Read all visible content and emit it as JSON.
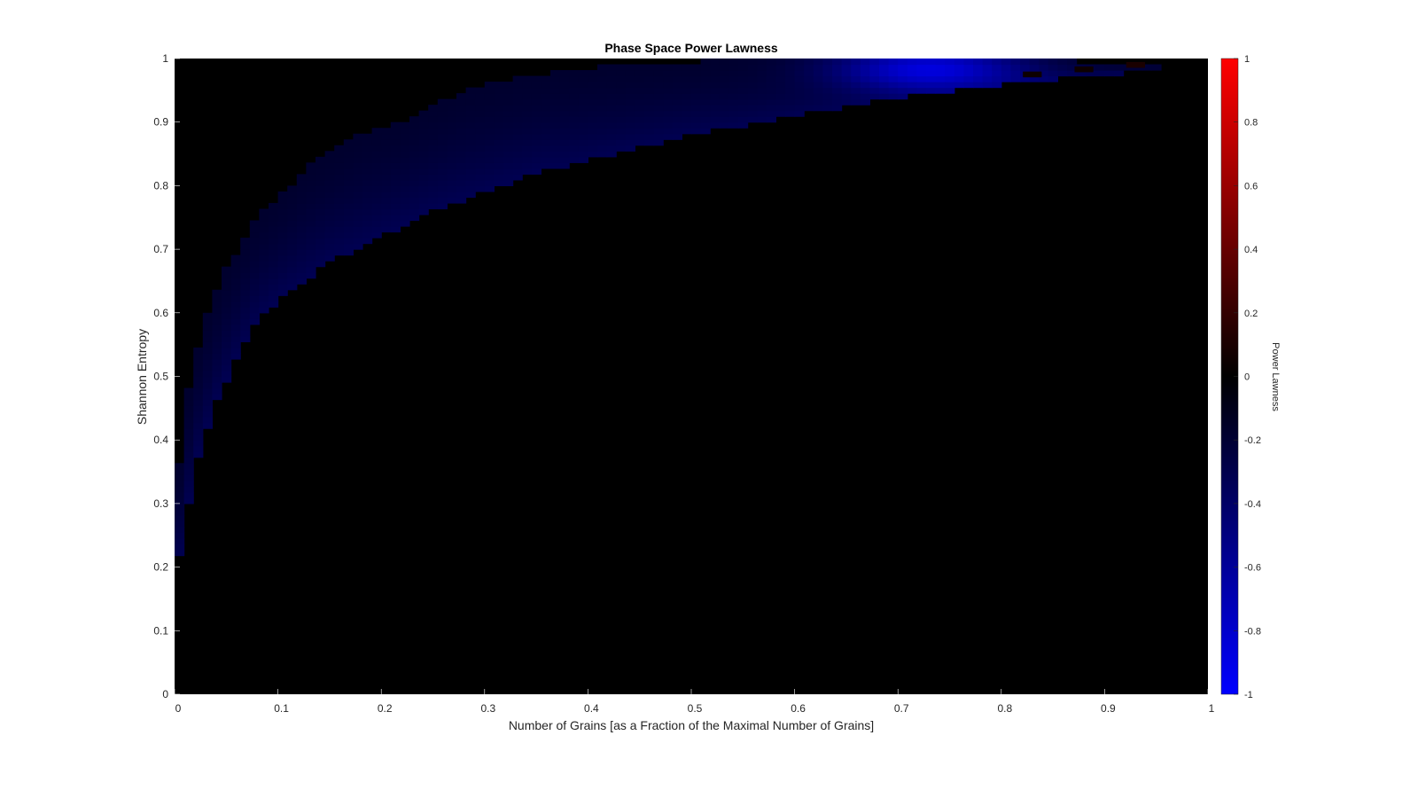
{
  "chart_data": {
    "type": "heatmap",
    "title": "Phase Space Power Lawness",
    "xlabel": "Number of Grains [as a Fraction of the Maximal Number of Grains]",
    "ylabel": "Shannon Entropy",
    "xlim": [
      0,
      1
    ],
    "ylim": [
      0,
      1
    ],
    "xticks": [
      "0",
      "0.1",
      "0.2",
      "0.3",
      "0.4",
      "0.5",
      "0.6",
      "0.7",
      "0.8",
      "0.9",
      "1"
    ],
    "yticks": [
      "0",
      "0.1",
      "0.2",
      "0.3",
      "0.4",
      "0.5",
      "0.6",
      "0.7",
      "0.8",
      "0.9",
      "1"
    ],
    "background_color": "#000000",
    "colorbar": {
      "label": "Power Lawness",
      "range": [
        -1,
        1
      ],
      "ticks": [
        "-1",
        "-0.8",
        "-0.6",
        "-0.4",
        "-0.2",
        "0",
        "0.2",
        "0.4",
        "0.6",
        "0.8",
        "1"
      ],
      "colors": {
        "min": "#0000ff",
        "mid": "#000000",
        "max": "#ff0000"
      }
    },
    "region": {
      "description_values": "non-zero band between lower and upper entropy bounds",
      "upper_bound": [
        {
          "x": 0.0,
          "y": 0.29
        },
        {
          "x": 0.01,
          "y": 0.45
        },
        {
          "x": 0.02,
          "y": 0.53
        },
        {
          "x": 0.03,
          "y": 0.59
        },
        {
          "x": 0.05,
          "y": 0.67
        },
        {
          "x": 0.08,
          "y": 0.75
        },
        {
          "x": 0.1,
          "y": 0.78
        },
        {
          "x": 0.13,
          "y": 0.83
        },
        {
          "x": 0.18,
          "y": 0.88
        },
        {
          "x": 0.22,
          "y": 0.9
        },
        {
          "x": 0.28,
          "y": 0.95
        },
        {
          "x": 0.33,
          "y": 0.97
        },
        {
          "x": 0.4,
          "y": 0.985
        },
        {
          "x": 0.5,
          "y": 0.995
        },
        {
          "x": 0.65,
          "y": 1.0
        },
        {
          "x": 0.8,
          "y": 1.0
        },
        {
          "x": 0.95,
          "y": 0.99
        }
      ],
      "lower_bound": [
        {
          "x": 0.0,
          "y": 0.18
        },
        {
          "x": 0.01,
          "y": 0.26
        },
        {
          "x": 0.02,
          "y": 0.36
        },
        {
          "x": 0.04,
          "y": 0.46
        },
        {
          "x": 0.06,
          "y": 0.53
        },
        {
          "x": 0.08,
          "y": 0.59
        },
        {
          "x": 0.1,
          "y": 0.62
        },
        {
          "x": 0.15,
          "y": 0.68
        },
        {
          "x": 0.2,
          "y": 0.72
        },
        {
          "x": 0.25,
          "y": 0.76
        },
        {
          "x": 0.3,
          "y": 0.79
        },
        {
          "x": 0.35,
          "y": 0.82
        },
        {
          "x": 0.4,
          "y": 0.84
        },
        {
          "x": 0.45,
          "y": 0.86
        },
        {
          "x": 0.5,
          "y": 0.88
        },
        {
          "x": 0.6,
          "y": 0.91
        },
        {
          "x": 0.7,
          "y": 0.94
        },
        {
          "x": 0.8,
          "y": 0.96
        },
        {
          "x": 0.9,
          "y": 0.975
        },
        {
          "x": 0.95,
          "y": 0.98
        }
      ],
      "value_range": [
        -0.85,
        0.1
      ],
      "hotspot": {
        "x": 0.73,
        "y": 0.985,
        "value": -0.85
      },
      "positive_spots": [
        {
          "x": 0.83,
          "y": 0.975,
          "value": 0.05
        },
        {
          "x": 0.88,
          "y": 0.983,
          "value": 0.05
        },
        {
          "x": 0.93,
          "y": 0.99,
          "value": 0.1
        }
      ]
    }
  }
}
